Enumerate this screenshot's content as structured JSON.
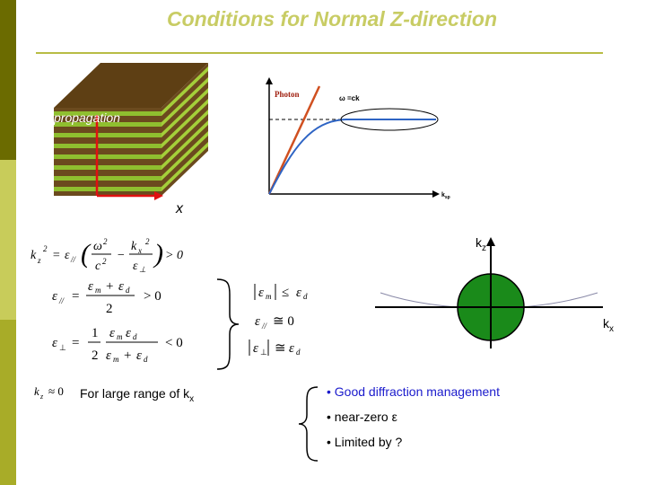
{
  "title": "Conditions for Normal Z-direction",
  "stack": {
    "label": "propagation",
    "x_label": "x"
  },
  "dispersion": {
    "photon_label": "Photon",
    "omega_label": "ω =ck",
    "ksp_label": "k",
    "ksp_sub": "sp"
  },
  "equations": {
    "kz_eq": "k_z² = ε_// (ω²/c² − k_x²/ε_⊥) > 0",
    "eps_par_eq": "ε_// = (ε_m + ε_d)/2 > 0",
    "eps_perp_eq": "ε_⊥ = (1/2)·ε_m ε_d/(ε_m + ε_d) < 0",
    "cond1": "|ε_m| ≤ ε_d",
    "cond2": "ε_// ≅ 0",
    "cond3": "|ε_⊥| ≅ ε_d",
    "kz_approx": "k_z ≈ 0"
  },
  "large_range": {
    "text": "For large range of k",
    "sub": "x"
  },
  "kspace": {
    "kz_label": "k",
    "kz_sub": "z",
    "kx_label": "k",
    "kx_sub": "x"
  },
  "bullets": [
    {
      "text": "Good diffraction management",
      "color": "#1a1acc"
    },
    {
      "text": "near-zero ε",
      "color": "#000000"
    },
    {
      "text": "Limited by ?",
      "color": "#000000"
    }
  ],
  "colors": {
    "title": "#c8cc64",
    "sidebar_dark": "#6b6b00",
    "sidebar_light": "#c8cc5a",
    "layer_green": "#8fbf2f",
    "layer_brown": "#6b4a1e",
    "photon_line": "#d05020",
    "curve": "#2e64c4",
    "circle": "#1a8a1a"
  }
}
